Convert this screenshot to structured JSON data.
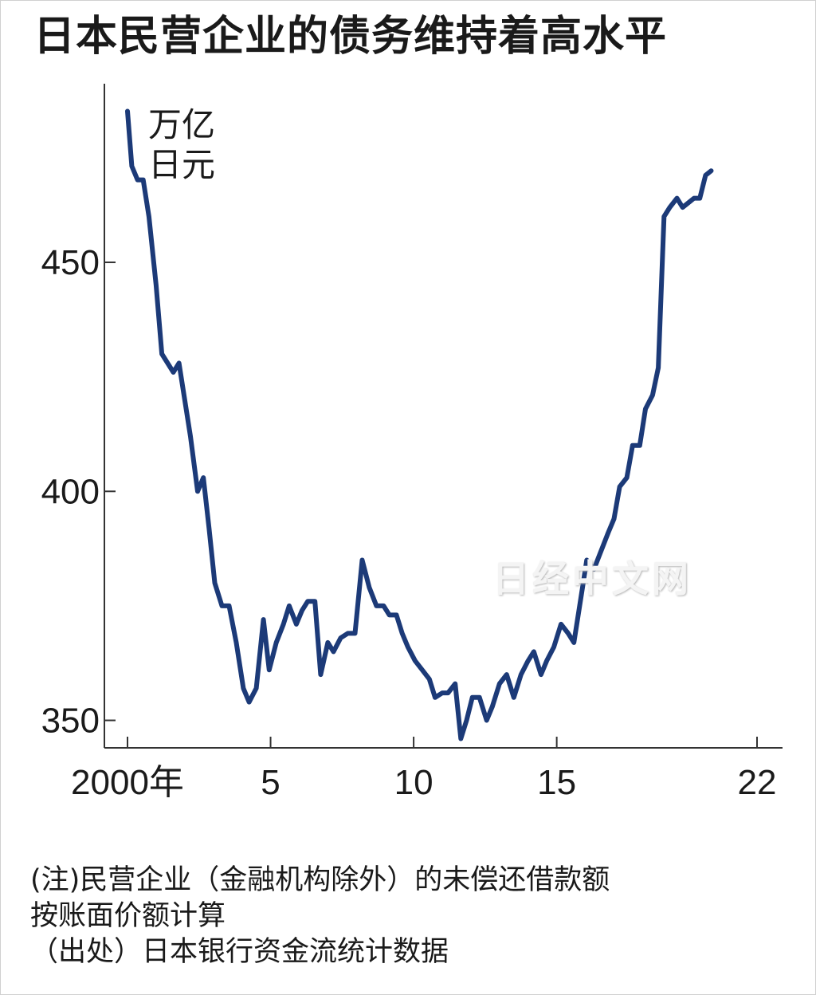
{
  "title": "日本民营企业的债务维持着高水平",
  "unit_line1": "万亿",
  "unit_line2": "日元",
  "watermark": "日经中文网",
  "notes": {
    "line1": "(注)民营企业（金融机构除外）的未偿还借款额",
    "line2": "按账面价额计算",
    "line3": "（出处）日本银行资金流统计数据"
  },
  "colors": {
    "line": "#1c3a78",
    "axis": "#333333",
    "text": "#1a1a1a"
  },
  "chart_data": {
    "type": "line",
    "title": "日本民营企业的债务维持着高水平",
    "ylabel": "万亿日元",
    "xlabel": "",
    "xlim": [
      2000,
      2022
    ],
    "ylim": [
      344,
      489
    ],
    "x_ticks": [
      {
        "value": 2000,
        "label": "2000年"
      },
      {
        "value": 2005,
        "label": "5"
      },
      {
        "value": 2010,
        "label": "10"
      },
      {
        "value": 2015,
        "label": "15"
      },
      {
        "value": 2022,
        "label": "22"
      }
    ],
    "y_ticks": [
      {
        "value": 350,
        "label": "350"
      },
      {
        "value": 400,
        "label": "400"
      },
      {
        "value": 450,
        "label": "450"
      }
    ],
    "grid": false,
    "series": [
      {
        "points": [
          [
            2000.0,
            483
          ],
          [
            2000.15,
            471
          ],
          [
            2000.35,
            468
          ],
          [
            2000.55,
            468
          ],
          [
            2000.75,
            460
          ],
          [
            2001.0,
            445
          ],
          [
            2001.2,
            430
          ],
          [
            2001.4,
            428
          ],
          [
            2001.6,
            426
          ],
          [
            2001.8,
            428
          ],
          [
            2002.0,
            420
          ],
          [
            2002.2,
            412
          ],
          [
            2002.45,
            400
          ],
          [
            2002.65,
            403
          ],
          [
            2002.85,
            392
          ],
          [
            2003.05,
            380
          ],
          [
            2003.3,
            375
          ],
          [
            2003.55,
            375
          ],
          [
            2003.8,
            367
          ],
          [
            2004.05,
            357
          ],
          [
            2004.25,
            354
          ],
          [
            2004.5,
            357
          ],
          [
            2004.75,
            372
          ],
          [
            2004.95,
            361
          ],
          [
            2005.2,
            367
          ],
          [
            2005.45,
            371
          ],
          [
            2005.65,
            375
          ],
          [
            2005.9,
            371
          ],
          [
            2006.1,
            374
          ],
          [
            2006.3,
            376
          ],
          [
            2006.55,
            376
          ],
          [
            2006.75,
            360
          ],
          [
            2007.0,
            367
          ],
          [
            2007.2,
            365
          ],
          [
            2007.45,
            368
          ],
          [
            2007.7,
            369
          ],
          [
            2007.95,
            369
          ],
          [
            2008.2,
            385
          ],
          [
            2008.45,
            379
          ],
          [
            2008.7,
            375
          ],
          [
            2008.95,
            375
          ],
          [
            2009.15,
            373
          ],
          [
            2009.4,
            373
          ],
          [
            2009.6,
            369
          ],
          [
            2009.8,
            366
          ],
          [
            2010.05,
            363
          ],
          [
            2010.3,
            361
          ],
          [
            2010.55,
            359
          ],
          [
            2010.75,
            355
          ],
          [
            2011.0,
            356
          ],
          [
            2011.2,
            356
          ],
          [
            2011.45,
            358
          ],
          [
            2011.65,
            346
          ],
          [
            2011.85,
            350
          ],
          [
            2012.05,
            355
          ],
          [
            2012.3,
            355
          ],
          [
            2012.55,
            350
          ],
          [
            2012.75,
            353
          ],
          [
            2013.0,
            358
          ],
          [
            2013.25,
            360
          ],
          [
            2013.5,
            355
          ],
          [
            2013.75,
            360
          ],
          [
            2014.0,
            363
          ],
          [
            2014.2,
            365
          ],
          [
            2014.45,
            360
          ],
          [
            2014.65,
            363
          ],
          [
            2014.9,
            366
          ],
          [
            2015.15,
            371
          ],
          [
            2015.4,
            369
          ],
          [
            2015.6,
            367
          ],
          [
            2015.85,
            377
          ],
          [
            2016.05,
            385
          ],
          [
            2016.3,
            383
          ],
          [
            2016.55,
            387
          ],
          [
            2016.8,
            391
          ],
          [
            2017.0,
            394
          ],
          [
            2017.2,
            401
          ],
          [
            2017.45,
            403
          ],
          [
            2017.65,
            410
          ],
          [
            2017.9,
            410
          ],
          [
            2018.1,
            418
          ],
          [
            2018.35,
            421
          ],
          [
            2018.55,
            427
          ],
          [
            2018.75,
            460
          ],
          [
            2018.95,
            462
          ],
          [
            2019.2,
            464
          ],
          [
            2019.4,
            462
          ],
          [
            2019.6,
            463
          ],
          [
            2019.8,
            464
          ],
          [
            2020.0,
            464
          ],
          [
            2020.2,
            469
          ],
          [
            2020.4,
            470
          ]
        ]
      }
    ]
  }
}
